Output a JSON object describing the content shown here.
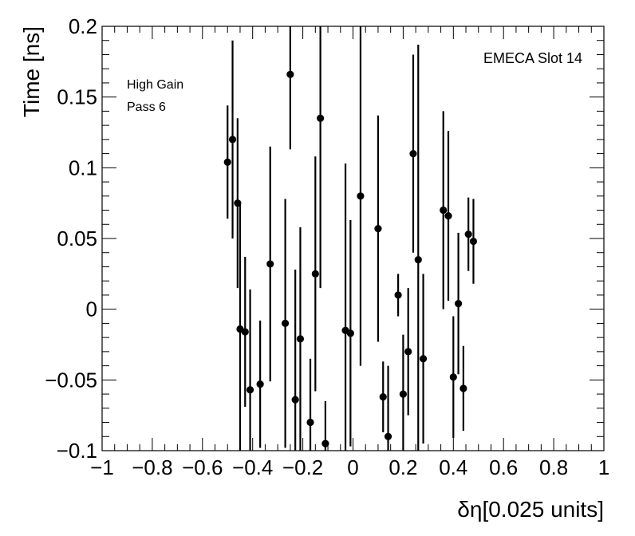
{
  "chart_data": {
    "type": "scatter",
    "xlabel": "δη[0.025 units]",
    "ylabel": "Time [ns]",
    "xlim": [
      -1,
      1
    ],
    "ylim": [
      -0.1,
      0.2
    ],
    "xticks": [
      "−1",
      "−0.8",
      "−0.6",
      "−0.4",
      "−0.2",
      "0",
      "0.2",
      "0.4",
      "0.6",
      "0.8",
      "1"
    ],
    "yticks": [
      "−0.1",
      "−0.05",
      "0",
      "0.05",
      "0.1",
      "0.15",
      "0.2"
    ],
    "grid": false,
    "legend": "none",
    "annotations": {
      "label_top_right": "EMECA Slot 14",
      "label_gain": "High Gain",
      "label_pass": "Pass 6"
    },
    "series": [
      {
        "marker": "circle",
        "color": "#000000",
        "points": [
          {
            "x": -0.5,
            "y": 0.104,
            "err": 0.04
          },
          {
            "x": -0.48,
            "y": 0.12,
            "err": 0.07
          },
          {
            "x": -0.46,
            "y": 0.075,
            "err": 0.06
          },
          {
            "x": -0.45,
            "y": -0.014,
            "err": 0.09
          },
          {
            "x": -0.43,
            "y": -0.016,
            "err": 0.053
          },
          {
            "x": -0.41,
            "y": -0.057,
            "err": 0.071
          },
          {
            "x": -0.37,
            "y": -0.053,
            "err": 0.045
          },
          {
            "x": -0.33,
            "y": 0.032,
            "err": 0.083
          },
          {
            "x": -0.27,
            "y": -0.01,
            "err": 0.088
          },
          {
            "x": -0.25,
            "y": 0.166,
            "err": 0.053
          },
          {
            "x": -0.23,
            "y": -0.064,
            "err": 0.092
          },
          {
            "x": -0.21,
            "y": -0.021,
            "err": 0.079
          },
          {
            "x": -0.17,
            "y": -0.08,
            "err": 0.045
          },
          {
            "x": -0.15,
            "y": 0.025,
            "err": 0.083
          },
          {
            "x": -0.13,
            "y": 0.135,
            "err": 0.12
          },
          {
            "x": -0.11,
            "y": -0.095,
            "err": 0.03
          },
          {
            "x": -0.03,
            "y": -0.015,
            "err": 0.118
          },
          {
            "x": -0.01,
            "y": -0.017,
            "err": 0.08
          },
          {
            "x": 0.03,
            "y": 0.08,
            "err": 0.12
          },
          {
            "x": 0.1,
            "y": 0.057,
            "err": 0.08
          },
          {
            "x": 0.12,
            "y": -0.062,
            "err": 0.025
          },
          {
            "x": 0.14,
            "y": -0.09,
            "err": 0.05
          },
          {
            "x": 0.18,
            "y": 0.01,
            "err": 0.015
          },
          {
            "x": 0.2,
            "y": -0.06,
            "err": 0.042
          },
          {
            "x": 0.22,
            "y": -0.03,
            "err": 0.045
          },
          {
            "x": 0.24,
            "y": 0.11,
            "err": 0.07
          },
          {
            "x": 0.26,
            "y": 0.035,
            "err": 0.152
          },
          {
            "x": 0.28,
            "y": -0.035,
            "err": 0.06
          },
          {
            "x": 0.36,
            "y": 0.07,
            "err": 0.07
          },
          {
            "x": 0.38,
            "y": 0.066,
            "err": 0.06
          },
          {
            "x": 0.4,
            "y": -0.048,
            "err": 0.043
          },
          {
            "x": 0.42,
            "y": 0.004,
            "err": 0.05
          },
          {
            "x": 0.44,
            "y": -0.056,
            "err": 0.03
          },
          {
            "x": 0.46,
            "y": 0.053,
            "err": 0.026
          },
          {
            "x": 0.48,
            "y": 0.048,
            "err": 0.03
          }
        ]
      }
    ]
  }
}
